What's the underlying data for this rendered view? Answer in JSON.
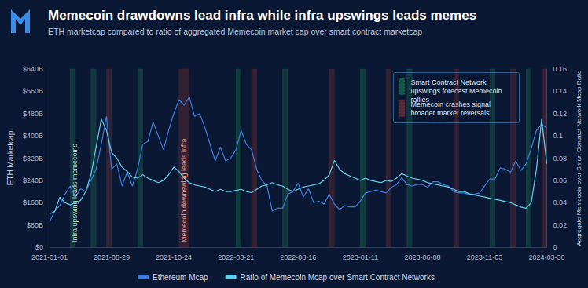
{
  "chart_data": {
    "type": "line",
    "title": "Memecoin drawdowns lead infra while infra upswings leads memes",
    "subtitle": "ETH marketcap compared to ratio of aggregated Memecoin market cap over smart contract marketcap",
    "ylabel": "ETH Marketcap",
    "y2label": "Aggregate Memecoin over Smart Contract Network Mcap Ratio",
    "categories": [
      "2021-01-01",
      null,
      null,
      null,
      null,
      null,
      null,
      null,
      null,
      null,
      null,
      null,
      "2021-05-29",
      null,
      null,
      null,
      null,
      null,
      null,
      null,
      null,
      null,
      null,
      null,
      "2021-10-24",
      null,
      null,
      null,
      null,
      null,
      null,
      null,
      null,
      null,
      null,
      null,
      "2022-03-21",
      null,
      null,
      null,
      null,
      null,
      null,
      null,
      null,
      null,
      null,
      null,
      "2022-08-16",
      null,
      null,
      null,
      null,
      null,
      null,
      null,
      null,
      null,
      null,
      null,
      "2023-01-11",
      null,
      null,
      null,
      null,
      null,
      null,
      null,
      null,
      null,
      null,
      null,
      "2023-06-08",
      null,
      null,
      null,
      null,
      null,
      null,
      null,
      null,
      null,
      null,
      null,
      "2023-11-03",
      null,
      null,
      null,
      null,
      null,
      null,
      null,
      null,
      null,
      null,
      null,
      "2024-03-30"
    ],
    "series": [
      {
        "name": "Ethereum Mcap",
        "color": "#3b7ddd",
        "values": [
          90,
          130,
          150,
          190,
          220,
          180,
          210,
          200,
          240,
          280,
          370,
          470,
          280,
          300,
          220,
          270,
          220,
          280,
          370,
          380,
          450,
          400,
          350,
          420,
          480,
          530,
          510,
          540,
          470,
          480,
          430,
          370,
          310,
          360,
          310,
          320,
          350,
          420,
          370,
          350,
          280,
          240,
          220,
          130,
          140,
          140,
          190,
          200,
          230,
          180,
          210,
          160,
          165,
          155,
          190,
          155,
          135,
          150,
          145,
          145,
          165,
          195,
          200,
          205,
          200,
          195,
          215,
          225,
          250,
          225,
          220,
          225,
          225,
          215,
          235,
          235,
          225,
          220,
          200,
          195,
          195,
          190,
          190,
          195,
          220,
          245,
          245,
          285,
          280,
          270,
          310,
          275,
          300,
          355,
          420,
          440,
          430
        ]
      },
      {
        "name": "Ratio of Memecoin Mcap over Smart Contract Networks",
        "color": "#5fd0ee",
        "axis": "y2",
        "values": [
          0.03,
          0.032,
          0.045,
          0.04,
          0.038,
          0.04,
          0.042,
          0.05,
          0.065,
          0.09,
          0.115,
          0.105,
          0.085,
          0.08,
          0.072,
          0.068,
          0.063,
          0.062,
          0.065,
          0.062,
          0.06,
          0.058,
          0.06,
          0.065,
          0.072,
          0.068,
          0.062,
          0.058,
          0.056,
          0.055,
          0.054,
          0.052,
          0.05,
          0.052,
          0.05,
          0.05,
          0.051,
          0.052,
          0.05,
          0.049,
          0.052,
          0.055,
          0.056,
          0.058,
          0.056,
          0.055,
          0.052,
          0.05,
          0.052,
          0.054,
          0.055,
          0.056,
          0.057,
          0.06,
          0.065,
          0.078,
          0.07,
          0.066,
          0.064,
          0.062,
          0.06,
          0.062,
          0.06,
          0.059,
          0.058,
          0.06,
          0.059,
          0.062,
          0.066,
          0.064,
          0.062,
          0.061,
          0.06,
          0.058,
          0.057,
          0.056,
          0.055,
          0.054,
          0.052,
          0.05,
          0.05,
          0.048,
          0.047,
          0.046,
          0.045,
          0.044,
          0.043,
          0.042,
          0.041,
          0.04,
          0.038,
          0.036,
          0.035,
          0.04,
          0.07,
          0.115,
          0.075
        ]
      }
    ],
    "ylim": [
      0,
      640
    ],
    "yticks": [
      {
        "value": 0,
        "label": "$0"
      },
      {
        "value": 80,
        "label": "$80B"
      },
      {
        "value": 160,
        "label": "$160B"
      },
      {
        "value": 240,
        "label": "$240B"
      },
      {
        "value": 320,
        "label": "$320B"
      },
      {
        "value": 400,
        "label": "$400B"
      },
      {
        "value": 480,
        "label": "$480B"
      },
      {
        "value": 560,
        "label": "$560B"
      },
      {
        "value": 640,
        "label": "$640B"
      }
    ],
    "y2lim": [
      0,
      0.16
    ],
    "y2ticks": [
      0,
      0.02,
      0.04,
      0.06,
      0.08,
      0.1,
      0.12,
      0.14,
      0.16
    ],
    "grid": false,
    "legend": "bottom",
    "bands": [
      {
        "start": 4,
        "end": 5,
        "color": "#2ecc71"
      },
      {
        "start": 8,
        "end": 9,
        "color": "#2ecc71"
      },
      {
        "start": 11,
        "end": 12,
        "color": "#e74c3c"
      },
      {
        "start": 17,
        "end": 18,
        "color": "#2ecc71"
      },
      {
        "start": 25,
        "end": 27,
        "color": "#e74c3c"
      },
      {
        "start": 36,
        "end": 37,
        "color": "#2ecc71"
      },
      {
        "start": 39,
        "end": 40,
        "color": "#e74c3c"
      },
      {
        "start": 45,
        "end": 46,
        "color": "#2ecc71"
      },
      {
        "start": 54,
        "end": 55,
        "color": "#e74c3c"
      },
      {
        "start": 60,
        "end": 61,
        "color": "#2ecc71"
      },
      {
        "start": 65,
        "end": 66,
        "color": "#e74c3c"
      },
      {
        "start": 69,
        "end": 70,
        "color": "#2ecc71"
      },
      {
        "start": 78,
        "end": 79,
        "color": "#e74c3c"
      },
      {
        "start": 85,
        "end": 86,
        "color": "#2ecc71"
      },
      {
        "start": 89,
        "end": 90,
        "color": "#e74c3c"
      },
      {
        "start": 92,
        "end": 93,
        "color": "#2ecc71"
      },
      {
        "start": 95,
        "end": 96,
        "color": "#e74c3c"
      }
    ],
    "band_legend": [
      {
        "text": "Smart Contract Network upswings forecast Memecoin rallies",
        "color": "#2ecc71"
      },
      {
        "text": "Memecoin crashes signal broader market reversals",
        "color": "#e74c3c"
      }
    ],
    "annotations": [
      {
        "text": "Infra upswing leads memecoins",
        "x": 5,
        "color": "#a9dcb8"
      },
      {
        "text": "Memecoin downswing leads infra",
        "x": 26,
        "color": "#e89a94"
      }
    ]
  }
}
